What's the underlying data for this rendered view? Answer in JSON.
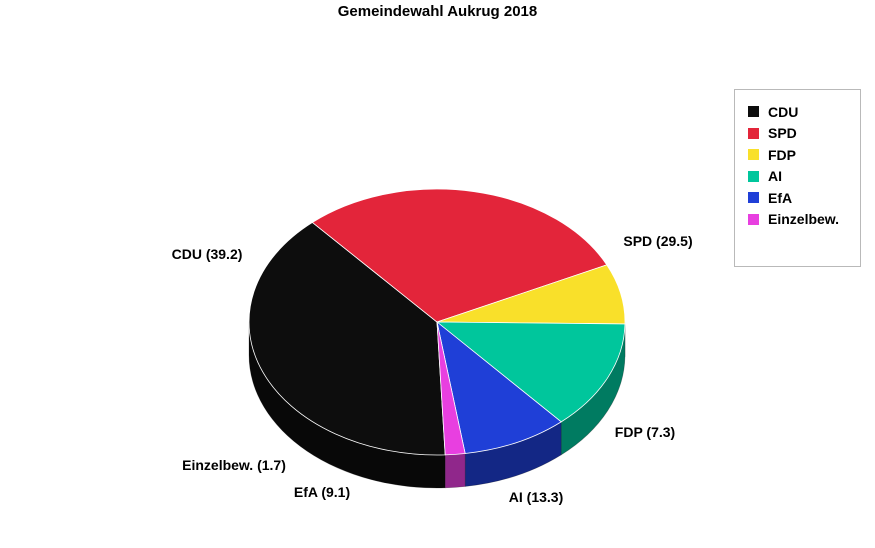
{
  "chart_data": {
    "type": "pie",
    "title": "Gemeindewahl Aukrug 2018",
    "legend_position": "top-right",
    "slices": [
      {
        "name": "CDU",
        "value": 39.2,
        "color": "#0d0d0d",
        "label": "CDU (39.2)"
      },
      {
        "name": "SPD",
        "value": 29.5,
        "color": "#e3253a",
        "label": "SPD (29.5)"
      },
      {
        "name": "FDP",
        "value": 7.3,
        "color": "#f9e02a",
        "label": "FDP (7.3)"
      },
      {
        "name": "AI",
        "value": 13.3,
        "color": "#00c69c",
        "label": "AI (13.3)"
      },
      {
        "name": "EfA",
        "value": 9.1,
        "color": "#1f3fd7",
        "label": "EfA (9.1)"
      },
      {
        "name": "Einzelbew.",
        "value": 1.7,
        "color": "#e83fe0",
        "label": "Einzelbew. (1.7)"
      }
    ]
  }
}
